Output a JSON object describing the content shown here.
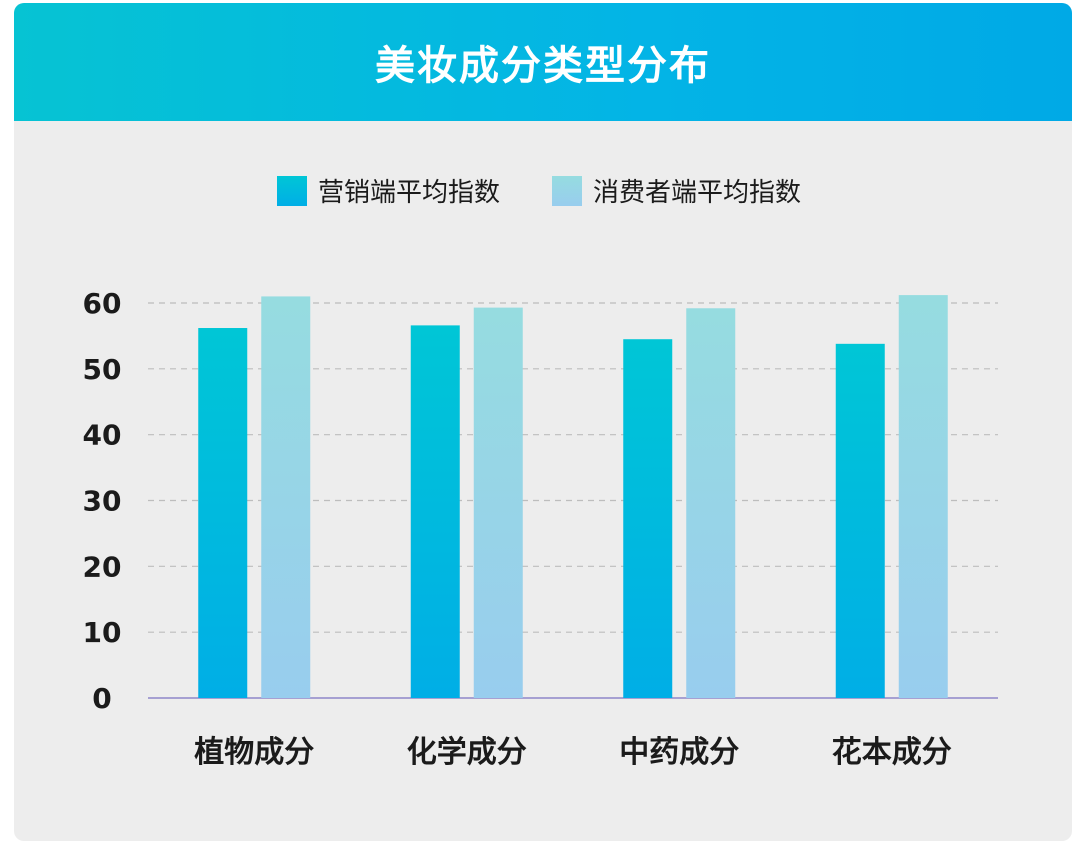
{
  "header": {
    "title": "美妆成分类型分布"
  },
  "colors": {
    "series1_top": "#00c6d6",
    "series1_bottom": "#00aee6",
    "series2_top": "#96dce0",
    "series2_bottom": "#98cdee",
    "grid": "#bdbdbd",
    "axis": "#8f86c9"
  },
  "chart_data": {
    "type": "bar",
    "title": "美妆成分类型分布",
    "categories": [
      "植物成分",
      "化学成分",
      "中药成分",
      "花本成分"
    ],
    "series": [
      {
        "name": "营销端平均指数",
        "values": [
          56.2,
          56.6,
          54.5,
          53.8
        ]
      },
      {
        "name": "消费者端平均指数",
        "values": [
          61.0,
          59.3,
          59.2,
          61.2
        ]
      }
    ],
    "yticks": [
      "0",
      "10",
      "20",
      "30",
      "40",
      "50",
      "60"
    ],
    "ylim": [
      0,
      60
    ],
    "grid": true,
    "legend": "top-center",
    "xlabel": "",
    "ylabel": ""
  }
}
